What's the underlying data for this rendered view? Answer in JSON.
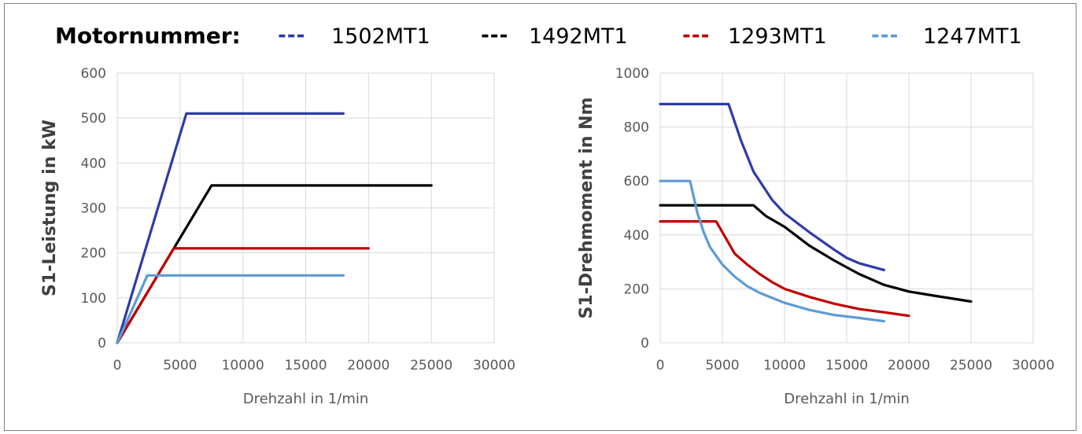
{
  "legend": {
    "title": "Motornummer:",
    "items": [
      {
        "dash": "---",
        "label": "1502MT1",
        "color": "#2e3ba8"
      },
      {
        "dash": "---",
        "label": "1492MT1",
        "color": "#000000"
      },
      {
        "dash": "---",
        "label": "1293MT1",
        "color": "#c00000"
      },
      {
        "dash": "---",
        "label": "1247MT1",
        "color": "#5b9bd5"
      }
    ]
  },
  "chart_data": [
    {
      "type": "line",
      "xlabel": "Drehzahl in 1/min",
      "ylabel": "S1-Leistung in kW",
      "xlim": [
        0,
        30000
      ],
      "ylim": [
        0,
        600
      ],
      "xticks": [
        0,
        5000,
        10000,
        15000,
        20000,
        25000,
        30000
      ],
      "yticks": [
        0,
        100,
        200,
        300,
        400,
        500,
        600
      ],
      "grid": true,
      "series": [
        {
          "name": "1502MT1",
          "color": "#2e3ba8",
          "points": [
            [
              0,
              0
            ],
            [
              5500,
              510
            ],
            [
              18000,
              510
            ]
          ]
        },
        {
          "name": "1492MT1",
          "color": "#000000",
          "points": [
            [
              0,
              0
            ],
            [
              7500,
              350
            ],
            [
              25000,
              350
            ]
          ]
        },
        {
          "name": "1293MT1",
          "color": "#c00000",
          "points": [
            [
              0,
              0
            ],
            [
              4500,
              210
            ],
            [
              20000,
              210
            ]
          ]
        },
        {
          "name": "1247MT1",
          "color": "#5b9bd5",
          "points": [
            [
              0,
              0
            ],
            [
              2400,
              150
            ],
            [
              18000,
              150
            ]
          ]
        }
      ]
    },
    {
      "type": "line",
      "xlabel": "Drehzahl in 1/min",
      "ylabel": "S1-Drehmoment in Nm",
      "xlim": [
        0,
        30000
      ],
      "ylim": [
        0,
        1000
      ],
      "xticks": [
        0,
        5000,
        10000,
        15000,
        20000,
        25000,
        30000
      ],
      "yticks": [
        0,
        200,
        400,
        600,
        800,
        1000
      ],
      "grid": true,
      "series": [
        {
          "name": "1502MT1",
          "color": "#2e3ba8",
          "points": [
            [
              0,
              885
            ],
            [
              5500,
              885
            ],
            [
              6500,
              750
            ],
            [
              7500,
              635
            ],
            [
              9000,
              530
            ],
            [
              10000,
              480
            ],
            [
              12000,
              410
            ],
            [
              14000,
              345
            ],
            [
              15000,
              315
            ],
            [
              16000,
              295
            ],
            [
              18000,
              270
            ]
          ]
        },
        {
          "name": "1492MT1",
          "color": "#000000",
          "points": [
            [
              0,
              510
            ],
            [
              7500,
              510
            ],
            [
              8500,
              470
            ],
            [
              10000,
              430
            ],
            [
              12000,
              360
            ],
            [
              14000,
              305
            ],
            [
              15000,
              280
            ],
            [
              16000,
              255
            ],
            [
              18000,
              215
            ],
            [
              20000,
              190
            ],
            [
              22000,
              175
            ],
            [
              25000,
              153
            ]
          ]
        },
        {
          "name": "1293MT1",
          "color": "#c00000",
          "points": [
            [
              0,
              450
            ],
            [
              4500,
              450
            ],
            [
              5500,
              370
            ],
            [
              6000,
              330
            ],
            [
              7000,
              290
            ],
            [
              8000,
              255
            ],
            [
              9000,
              225
            ],
            [
              10000,
              200
            ],
            [
              12000,
              170
            ],
            [
              14000,
              145
            ],
            [
              16000,
              125
            ],
            [
              18000,
              113
            ],
            [
              20000,
              100
            ]
          ]
        },
        {
          "name": "1247MT1",
          "color": "#5b9bd5",
          "points": [
            [
              0,
              600
            ],
            [
              2400,
              600
            ],
            [
              3000,
              480
            ],
            [
              3500,
              410
            ],
            [
              4000,
              355
            ],
            [
              5000,
              290
            ],
            [
              6000,
              245
            ],
            [
              7000,
              210
            ],
            [
              8000,
              185
            ],
            [
              10000,
              148
            ],
            [
              12000,
              122
            ],
            [
              14000,
              103
            ],
            [
              16000,
              92
            ],
            [
              18000,
              80
            ]
          ]
        }
      ]
    }
  ]
}
